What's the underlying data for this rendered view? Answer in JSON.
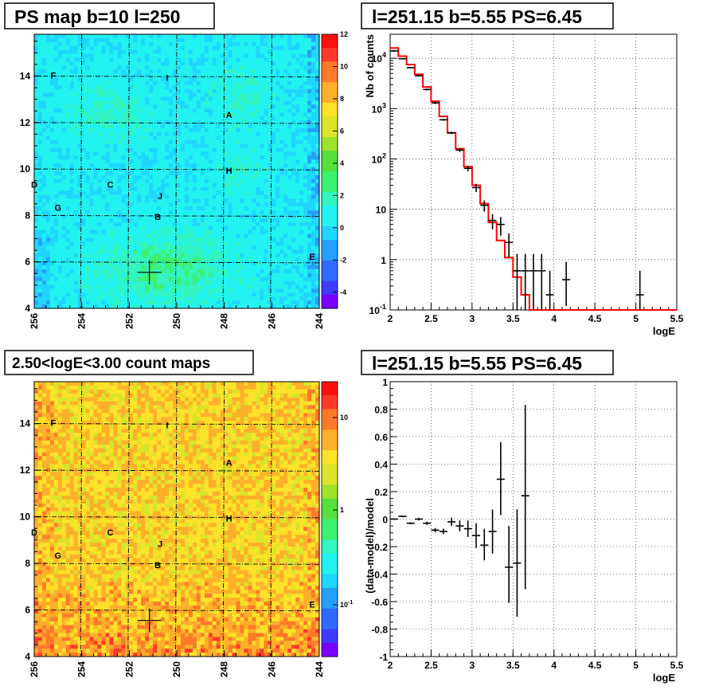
{
  "titles": {
    "map1": "PS map b=10 l=250",
    "spec": "l=251.15 b=5.55 PS=6.45",
    "map2": "2.50<logE<3.00 count maps",
    "resid": "l=251.15 b=5.55 PS=6.45"
  },
  "colors": {
    "data": "#000000",
    "model": "#ff0000"
  },
  "chart_data": [
    {
      "type": "heatmap",
      "title": "PS map b=10 l=250",
      "x_ticks": [
        "256",
        "254",
        "252",
        "250",
        "248",
        "246",
        "244"
      ],
      "y_ticks": [
        "4",
        "6",
        "8",
        "10",
        "12",
        "14"
      ],
      "xlim": [
        256,
        244
      ],
      "ylim": [
        4,
        15.8
      ],
      "colorbar_ticks": [
        "12",
        "10",
        "8",
        "6",
        "4",
        "2",
        "0",
        "-2",
        "-4"
      ],
      "colorbar_range": [
        -5,
        12
      ],
      "sources": [
        {
          "label": "F",
          "l": 255.2,
          "b": 13.9
        },
        {
          "label": "I",
          "l": 250.4,
          "b": 13.8
        },
        {
          "label": "A",
          "l": 247.8,
          "b": 12.2
        },
        {
          "label": "H",
          "l": 247.8,
          "b": 9.8
        },
        {
          "label": "D",
          "l": 256.0,
          "b": 9.2
        },
        {
          "label": "C",
          "l": 252.8,
          "b": 9.2
        },
        {
          "label": "J",
          "l": 250.7,
          "b": 8.7
        },
        {
          "label": "G",
          "l": 255.0,
          "b": 8.2
        },
        {
          "label": "B",
          "l": 250.8,
          "b": 7.8
        },
        {
          "label": "E",
          "l": 244.3,
          "b": 6.1
        }
      ],
      "marker": {
        "l": 251.15,
        "b": 5.55
      }
    },
    {
      "type": "line",
      "title": "l=251.15 b=5.55 PS=6.45",
      "xlabel": "logE",
      "ylabel": "Nb of counts",
      "xlim": [
        2,
        5.5
      ],
      "ylim": [
        0.1,
        30000
      ],
      "yscale": "log",
      "x_ticks": [
        "2",
        "2.5",
        "3",
        "3.5",
        "4",
        "4.5",
        "5",
        "5.5"
      ],
      "y_ticks": [
        "10^-1",
        "1",
        "10",
        "10^2",
        "10^3",
        "10^4"
      ],
      "grid": true,
      "model_series": {
        "name": "model",
        "bin_edges": [
          2.0,
          2.1,
          2.2,
          2.3,
          2.4,
          2.5,
          2.6,
          2.7,
          2.8,
          2.9,
          3.0,
          3.1,
          3.2,
          3.3,
          3.4,
          3.5,
          3.6,
          3.7,
          3.8,
          3.9,
          4.0,
          4.1,
          5.5
        ],
        "values": [
          16000,
          11000,
          7500,
          4800,
          2700,
          1400,
          700,
          330,
          160,
          70,
          30,
          13,
          5.5,
          2.4,
          1.1,
          0.45,
          0.2,
          0.1,
          0.1,
          0.1,
          0.1,
          0.1
        ]
      },
      "data_points": [
        {
          "x": 2.05,
          "y": 14000,
          "ylo": 13500,
          "yhi": 14500
        },
        {
          "x": 2.15,
          "y": 9800,
          "ylo": 9500,
          "yhi": 10100
        },
        {
          "x": 2.25,
          "y": 6500,
          "ylo": 6300,
          "yhi": 6700
        },
        {
          "x": 2.35,
          "y": 4500,
          "ylo": 4350,
          "yhi": 4650
        },
        {
          "x": 2.45,
          "y": 2400,
          "ylo": 2300,
          "yhi": 2500
        },
        {
          "x": 2.55,
          "y": 1300,
          "ylo": 1230,
          "yhi": 1370
        },
        {
          "x": 2.65,
          "y": 600,
          "ylo": 575,
          "yhi": 625
        },
        {
          "x": 2.75,
          "y": 330,
          "ylo": 312,
          "yhi": 348
        },
        {
          "x": 2.85,
          "y": 150,
          "ylo": 138,
          "yhi": 162
        },
        {
          "x": 2.95,
          "y": 65,
          "ylo": 57,
          "yhi": 73
        },
        {
          "x": 3.05,
          "y": 27,
          "ylo": 22,
          "yhi": 32
        },
        {
          "x": 3.15,
          "y": 12,
          "ylo": 9,
          "yhi": 15
        },
        {
          "x": 3.25,
          "y": 6,
          "ylo": 4,
          "yhi": 8
        },
        {
          "x": 3.35,
          "y": 5,
          "ylo": 3,
          "yhi": 7
        },
        {
          "x": 3.45,
          "y": 2.2,
          "ylo": 1.1,
          "yhi": 3.3
        },
        {
          "x": 3.55,
          "y": 0.6,
          "ylo": 0.1,
          "yhi": 1.3
        },
        {
          "x": 3.65,
          "y": 0.6,
          "ylo": 0.1,
          "yhi": 1.3
        },
        {
          "x": 3.75,
          "y": 0.6,
          "ylo": 0.1,
          "yhi": 1.3
        },
        {
          "x": 3.85,
          "y": 0.6,
          "ylo": 0.1,
          "yhi": 1.3
        },
        {
          "x": 3.95,
          "y": 0.2,
          "ylo": 0.1,
          "yhi": 0.6
        },
        {
          "x": 4.15,
          "y": 0.4,
          "ylo": 0.12,
          "yhi": 0.9
        },
        {
          "x": 5.05,
          "y": 0.2,
          "ylo": 0.1,
          "yhi": 0.6
        }
      ]
    },
    {
      "type": "heatmap",
      "title": "2.50<logE<3.00 count maps",
      "x_ticks": [
        "256",
        "254",
        "252",
        "250",
        "248",
        "246",
        "244"
      ],
      "y_ticks": [
        "4",
        "6",
        "8",
        "10",
        "12",
        "14"
      ],
      "xlim": [
        256,
        244
      ],
      "ylim": [
        4,
        15.8
      ],
      "colorbar_ticks": [
        "10",
        "1",
        "10^-1"
      ],
      "colorbar_scale": "log",
      "sources": [
        {
          "label": "F",
          "l": 255.2,
          "b": 13.9
        },
        {
          "label": "I",
          "l": 250.4,
          "b": 13.8
        },
        {
          "label": "A",
          "l": 247.8,
          "b": 12.2
        },
        {
          "label": "H",
          "l": 247.8,
          "b": 9.8
        },
        {
          "label": "D",
          "l": 256.0,
          "b": 9.2
        },
        {
          "label": "C",
          "l": 252.8,
          "b": 9.2
        },
        {
          "label": "J",
          "l": 250.7,
          "b": 8.7
        },
        {
          "label": "G",
          "l": 255.0,
          "b": 8.2
        },
        {
          "label": "B",
          "l": 250.8,
          "b": 7.8
        },
        {
          "label": "E",
          "l": 244.3,
          "b": 6.1
        }
      ],
      "marker": {
        "l": 251.15,
        "b": 5.55
      }
    },
    {
      "type": "scatter",
      "title": "l=251.15 b=5.55 PS=6.45",
      "xlabel": "logE",
      "ylabel": "(data-model)/model",
      "xlim": [
        2,
        5.5
      ],
      "ylim": [
        -1,
        1
      ],
      "x_ticks": [
        "2",
        "2.5",
        "3",
        "3.5",
        "4",
        "4.5",
        "5",
        "5.5"
      ],
      "y_ticks": [
        "-1",
        "-0.8",
        "-0.6",
        "-0.4",
        "-0.2",
        "0",
        "0.2",
        "0.4",
        "0.6",
        "0.8",
        "1"
      ],
      "grid": true,
      "data_points": [
        {
          "x": 2.05,
          "y": 0.0,
          "ylo": -0.005,
          "yhi": 0.005
        },
        {
          "x": 2.15,
          "y": 0.02,
          "ylo": 0.015,
          "yhi": 0.025
        },
        {
          "x": 2.25,
          "y": -0.03,
          "ylo": -0.037,
          "yhi": -0.023
        },
        {
          "x": 2.35,
          "y": 0.0,
          "ylo": -0.01,
          "yhi": 0.01
        },
        {
          "x": 2.45,
          "y": -0.03,
          "ylo": -0.042,
          "yhi": -0.018
        },
        {
          "x": 2.55,
          "y": -0.08,
          "ylo": -0.095,
          "yhi": -0.065
        },
        {
          "x": 2.65,
          "y": -0.09,
          "ylo": -0.11,
          "yhi": -0.07
        },
        {
          "x": 2.75,
          "y": -0.02,
          "ylo": -0.05,
          "yhi": 0.01
        },
        {
          "x": 2.85,
          "y": -0.05,
          "ylo": -0.09,
          "yhi": -0.01
        },
        {
          "x": 2.95,
          "y": -0.07,
          "ylo": -0.13,
          "yhi": -0.01
        },
        {
          "x": 3.05,
          "y": -0.12,
          "ylo": -0.21,
          "yhi": -0.03
        },
        {
          "x": 3.15,
          "y": -0.19,
          "ylo": -0.3,
          "yhi": -0.07
        },
        {
          "x": 3.25,
          "y": -0.09,
          "ylo": -0.25,
          "yhi": 0.07
        },
        {
          "x": 3.35,
          "y": 0.29,
          "ylo": 0.03,
          "yhi": 0.56
        },
        {
          "x": 3.45,
          "y": -0.35,
          "ylo": -0.61,
          "yhi": -0.05
        },
        {
          "x": 3.55,
          "y": -0.32,
          "ylo": -0.71,
          "yhi": 0.07
        },
        {
          "x": 3.65,
          "y": 0.17,
          "ylo": -0.51,
          "yhi": 0.83
        }
      ]
    }
  ]
}
